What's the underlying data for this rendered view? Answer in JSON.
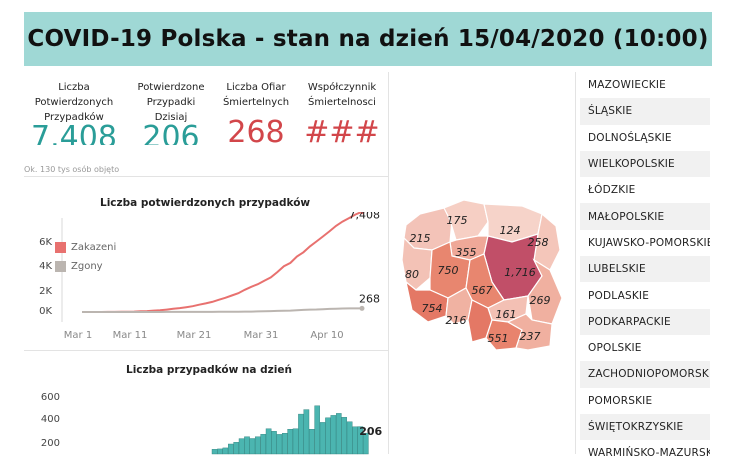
{
  "header": {
    "title": "COVID-19 Polska - stan na dzień 15/04/2020 (10:00)",
    "bg": "#9fd8d5"
  },
  "kpis": {
    "confirmed": {
      "label": [
        "Liczba",
        "Potwierdzonych",
        "Przypadków"
      ],
      "value": "7.408",
      "color": "#2a9d98"
    },
    "today": {
      "label": [
        "Potwierdzone",
        "Przypadki",
        "Dzisiaj"
      ],
      "value": "206",
      "color": "#2a9d98"
    },
    "deaths": {
      "label": [
        "Liczba Ofiar",
        "Śmiertelnych"
      ],
      "value": "268",
      "color": "#d2464a"
    },
    "rate": {
      "label": [
        "Współczynnik",
        "Śmiertelnosci"
      ],
      "value": "###",
      "color": "#d2464a"
    }
  },
  "cut_subtitle": "Ok. 130 tys osób objęto",
  "chart_data": [
    {
      "type": "line",
      "title": "Liczba potwierdzonych przypadków",
      "x_ticks": [
        "Mar 1",
        "Mar 11",
        "Mar 21",
        "Mar 31",
        "Apr 10"
      ],
      "y_ticks": [
        "6K",
        "4K",
        "2K",
        "0K"
      ],
      "ylim": [
        0,
        6500
      ],
      "legend": "top-left",
      "series": [
        {
          "name": "Zakazeni",
          "color": "#e8716f",
          "end_label": "7,408",
          "values": [
            0,
            0,
            0,
            1,
            5,
            11,
            17,
            22,
            31,
            51,
            68,
            104,
            125,
            177,
            238,
            287,
            355,
            425,
            536,
            634,
            749,
            901,
            1051,
            1221,
            1389,
            1638,
            1862,
            2055,
            2311,
            2554,
            2946,
            3383,
            3627,
            4102,
            4413,
            4848,
            5205,
            5575,
            5955,
            6356,
            6674,
            6934,
            7202,
            7408
          ]
        },
        {
          "name": "Zgony",
          "color": "#bbb5b0",
          "end_label": "268",
          "values": [
            0,
            0,
            0,
            0,
            0,
            0,
            0,
            0,
            0,
            0,
            1,
            3,
            3,
            5,
            5,
            5,
            5,
            7,
            7,
            8,
            10,
            14,
            17,
            18,
            22,
            31,
            33,
            43,
            57,
            65,
            79,
            94,
            107,
            129,
            152,
            174,
            181,
            208,
            232,
            245,
            257,
            263,
            266,
            268
          ]
        }
      ]
    },
    {
      "type": "bar",
      "title": "Liczba przypadków na dzień",
      "y_ticks": [
        "600",
        "400",
        "200"
      ],
      "ylim": [
        0,
        650
      ],
      "color": "#4bb5b0",
      "end_label": "206",
      "values": [
        46,
        50,
        60,
        98,
        115,
        152,
        170,
        153,
        170,
        194,
        249,
        224,
        193,
        205,
        244,
        249,
        393,
        437,
        244,
        475,
        311,
        357,
        380,
        400,
        361,
        318,
        268,
        270,
        206
      ]
    }
  ],
  "map": {
    "title_hidden": "",
    "labels": [
      "175",
      "124",
      "215",
      "355",
      "258",
      "80",
      "750",
      "1,716",
      "567",
      "269",
      "754",
      "216",
      "161",
      "551",
      "237"
    ]
  },
  "regions": [
    "MAZOWIECKIE",
    "ŚLĄSKIE",
    "DOLNOŚLĄSKIE",
    "WIELKOPOLSKIE",
    "ŁÓDZKIE",
    "MAŁOPOLSKIE",
    "KUJAWSKO-POMORSKIE",
    "LUBELSKIE",
    "PODLASKIE",
    "PODKARPACKIE",
    "OPOLSKIE",
    "ZACHODNIOPOMORSKIE",
    "POMORSKIE",
    "ŚWIĘTOKRZYSKIE",
    "WARMIŃSKO-MAZURSKIE"
  ]
}
